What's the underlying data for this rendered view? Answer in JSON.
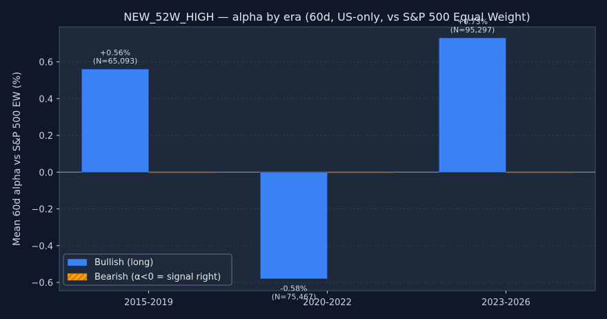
{
  "chart_data": {
    "type": "bar",
    "title": "NEW_52W_HIGH — alpha by era (60d, US-only, vs S&P 500 Equal Weight)",
    "xlabel": "",
    "ylabel": "Mean 60d alpha vs S&P 500 EW (%)",
    "categories": [
      "2015-2019",
      "2020-2022",
      "2023-2026"
    ],
    "series": [
      {
        "name": "Bullish (long)",
        "color": "#3b82f6",
        "values": [
          0.56,
          -0.58,
          0.73
        ],
        "labels": [
          "+0.56%\n(N=65,093)",
          "-0.58%\n(N=75,467)",
          "+0.73%\n(N=95,297)"
        ]
      },
      {
        "name": "Bearish (α<0 = signal right)",
        "color": "#f59e0b",
        "hatch": true,
        "values": [
          0,
          0,
          0
        ],
        "labels": [
          "",
          "",
          ""
        ]
      }
    ],
    "ylim": [
      -0.645,
      0.79
    ],
    "yticks": [
      -0.6,
      -0.4,
      -0.2,
      0.0,
      0.2,
      0.4,
      0.6
    ],
    "ytick_labels": [
      "−0.6",
      "−0.4",
      "−0.2",
      "0.0",
      "0.2",
      "0.4",
      "0.6"
    ],
    "grid": true,
    "legend_position": "lower-left"
  },
  "colors": {
    "page_bg": "#0f172a",
    "plot_bg": "#1e293b",
    "axis": "#475569",
    "grid": "#334155",
    "text": "#cbd5e1"
  }
}
